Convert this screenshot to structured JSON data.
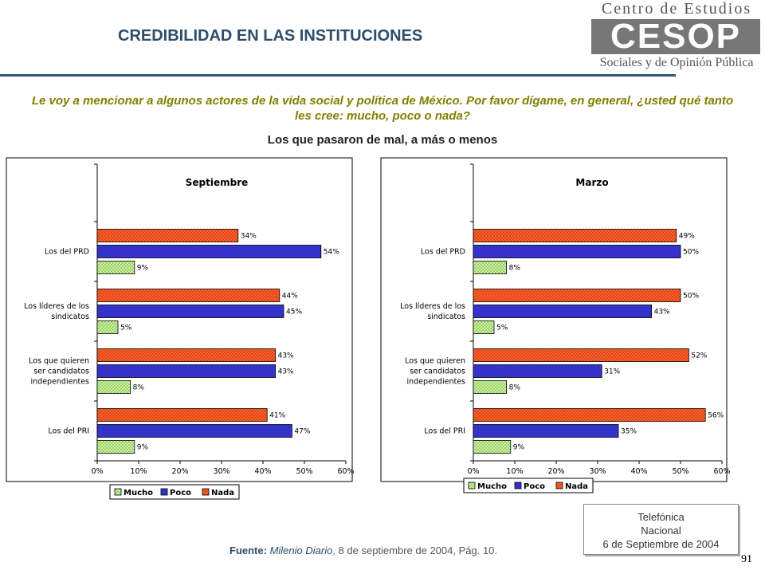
{
  "header": {
    "title": "CREDIBILIDAD EN LAS INSTITUCIONES",
    "logo_top": "Centro de Estudios",
    "logo_mark": "CESOP",
    "logo_bottom": "Sociales y de Opinión Pública"
  },
  "question": "Le voy a mencionar a algunos actores de la vida social y política de México. Por favor dígame, en general, ¿usted qué tanto les cree: mucho, poco o nada?",
  "subtitle": "Los que pasaron de mal, a más o menos",
  "colors": {
    "Mucho": "#ccff99",
    "Poco": "#3333cc",
    "Nada": "#ff6633"
  },
  "chart_data": [
    {
      "type": "bar",
      "orientation": "horizontal",
      "title": "Septiembre",
      "categories": [
        "Los del PRD",
        "Los líderes de los sindicatos",
        "Los que quieren ser candidatos independientes",
        "Los del PRI"
      ],
      "category_lines": [
        [
          "Los del PRD"
        ],
        [
          "Los líderes de los",
          "sindicatos"
        ],
        [
          "Los que quieren",
          "ser candidatos",
          "independientes"
        ],
        [
          "Los del PRI"
        ]
      ],
      "series": [
        {
          "name": "Nada",
          "values": [
            34,
            44,
            43,
            41
          ]
        },
        {
          "name": "Poco",
          "values": [
            54,
            45,
            43,
            47
          ]
        },
        {
          "name": "Mucho",
          "values": [
            9,
            5,
            8,
            9
          ]
        }
      ],
      "xlim": [
        0,
        60
      ],
      "ticks": [
        "0%",
        "10%",
        "20%",
        "30%",
        "40%",
        "50%",
        "60%"
      ],
      "legend": [
        "Mucho",
        "Poco",
        "Nada"
      ],
      "legend_position": "bottom",
      "grid": false
    },
    {
      "type": "bar",
      "orientation": "horizontal",
      "title": "Marzo",
      "categories": [
        "Los del PRD",
        "Los líderes de los sindicatos",
        "Los que quieren ser candidatos independientes",
        "Los del PRI"
      ],
      "category_lines": [
        [
          "Los del PRD"
        ],
        [
          "Los líderes de los",
          "sindicatos"
        ],
        [
          "Los que quieren",
          "ser candidatos",
          "independientes"
        ],
        [
          "Los del PRI"
        ]
      ],
      "series": [
        {
          "name": "Nada",
          "values": [
            49,
            50,
            52,
            56
          ]
        },
        {
          "name": "Poco",
          "values": [
            50,
            43,
            31,
            35
          ]
        },
        {
          "name": "Mucho",
          "values": [
            8,
            5,
            8,
            9
          ]
        }
      ],
      "xlim": [
        0,
        60
      ],
      "ticks": [
        "0%",
        "10%",
        "20%",
        "30%",
        "40%",
        "50%",
        "60%"
      ],
      "legend": [
        "Mucho",
        "Poco",
        "Nada"
      ],
      "legend_position": "bottom",
      "grid": false
    }
  ],
  "footer": {
    "telefonica_lines": [
      "Telefónica",
      "Nacional",
      "6 de Septiembre de 2004"
    ],
    "source_label": "Fuente:",
    "source_publication": "Milenio Diario",
    "source_rest": ", 8 de septiembre de 2004, Pág. 10.",
    "page_number": "91"
  }
}
